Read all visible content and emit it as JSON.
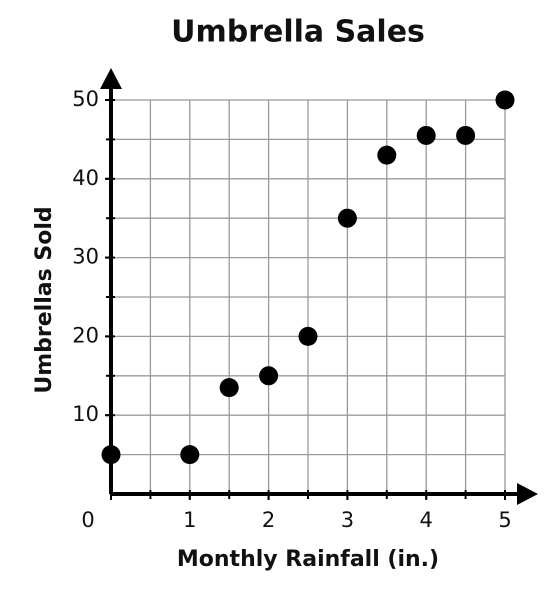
{
  "chart_data": {
    "type": "scatter",
    "title": "Umbrella Sales",
    "xlabel": "Monthly Rainfall (in.)",
    "ylabel": "Umbrellas Sold",
    "x": [
      0,
      1,
      1.5,
      2,
      2.5,
      3,
      3.5,
      4,
      4.5,
      5
    ],
    "values": [
      5,
      5,
      13.5,
      15,
      20,
      35,
      43,
      45.5,
      45.5,
      50
    ],
    "color": "#000000",
    "xlim": [
      0,
      5
    ],
    "ylim": [
      0,
      50
    ],
    "xticks": [
      0,
      1,
      2,
      3,
      4,
      5
    ],
    "yticks": [
      10,
      20,
      30,
      40,
      50
    ],
    "grid": true,
    "xgrid_step": 0.5,
    "ygrid_step": 5
  }
}
